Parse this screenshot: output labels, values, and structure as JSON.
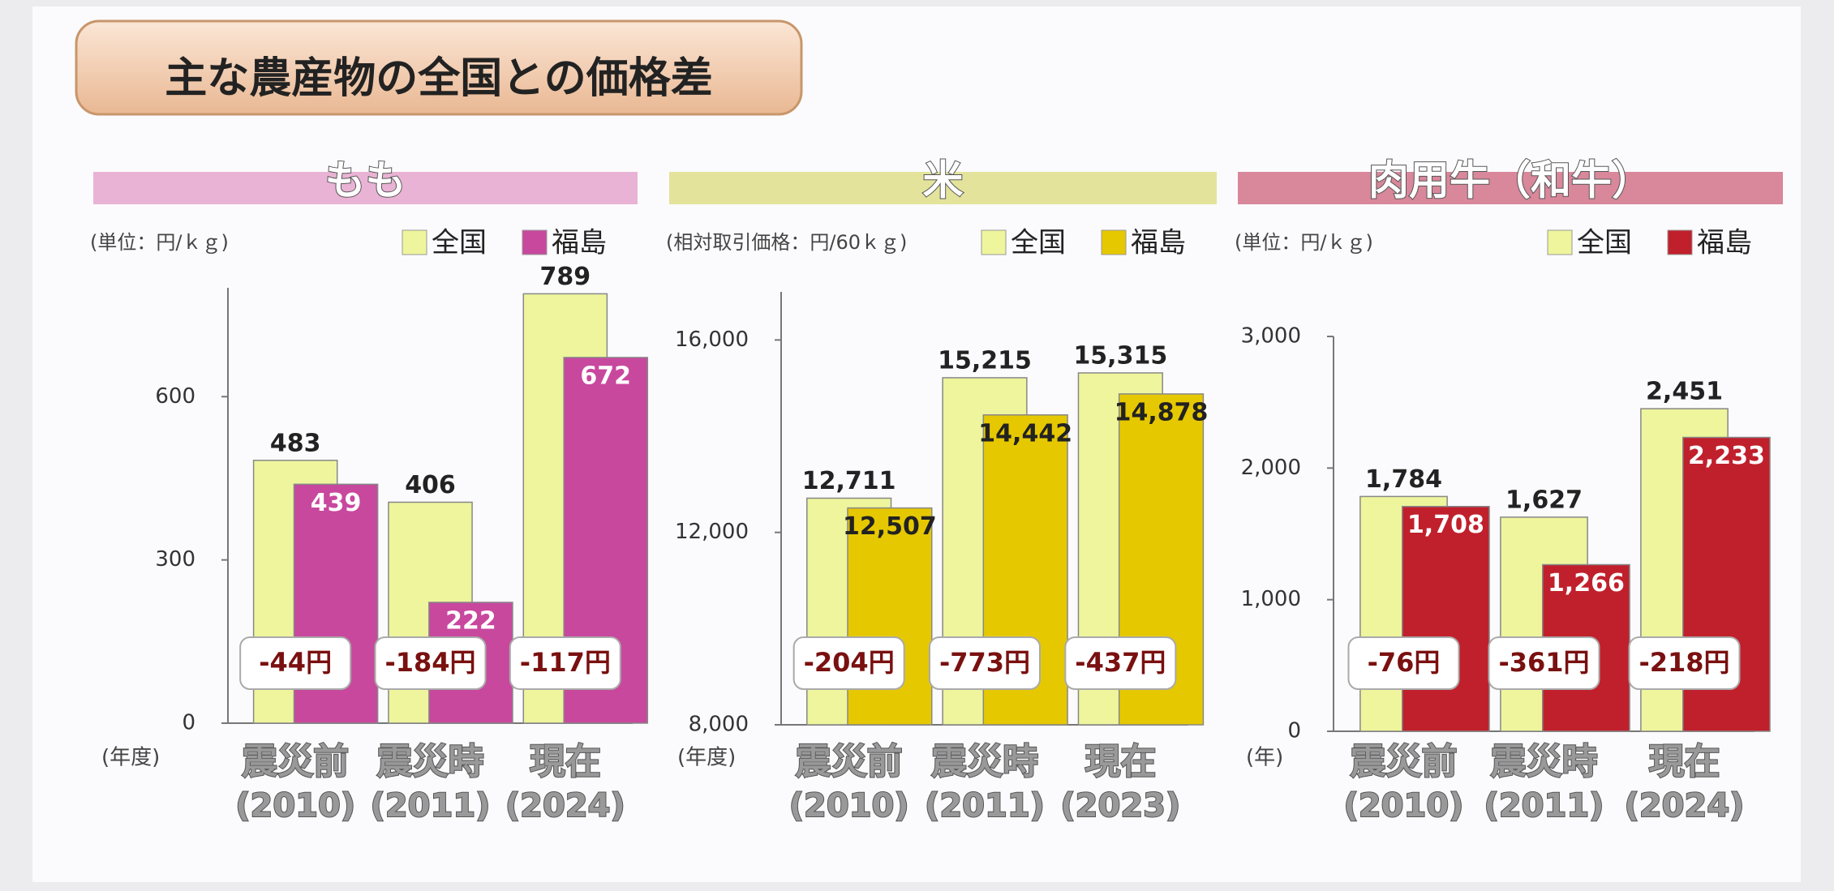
{
  "title": "主な農産物の全国との価格差",
  "chart_data": [
    {
      "type": "bar",
      "title": "もも",
      "unit": "(単位：円/ｋｇ)",
      "x_label": "(年度)",
      "categories": [
        "震災前",
        "震災時",
        "現在"
      ],
      "category_years": [
        "(2010)",
        "(2011)",
        "(2024)"
      ],
      "series": [
        {
          "name": "全国",
          "color": "#eef59c",
          "values": [
            483,
            406,
            789
          ]
        },
        {
          "name": "福島",
          "color": "#c8489e",
          "values": [
            439,
            222,
            672
          ]
        }
      ],
      "annotations": [
        "-44円",
        "-184円",
        "-117円"
      ],
      "ylim": [
        0,
        800
      ],
      "yticks": [
        0,
        300,
        600
      ],
      "header_color": "#e9b3d5"
    },
    {
      "type": "bar",
      "title": "米",
      "unit": "(相対取引価格：円/60ｋｇ)",
      "x_label": "(年度)",
      "categories": [
        "震災前",
        "震災時",
        "現在"
      ],
      "category_years": [
        "(2010)",
        "(2011)",
        "(2023)"
      ],
      "series": [
        {
          "name": "全国",
          "color": "#eef59c",
          "values": [
            12711,
            15215,
            15315
          ],
          "value_labels": [
            "12,711",
            "15,215",
            "15,315"
          ]
        },
        {
          "name": "福島",
          "color": "#e6c800",
          "values": [
            12507,
            14442,
            14878
          ],
          "value_labels": [
            "12,507",
            "14,442",
            "14,878"
          ]
        }
      ],
      "annotations": [
        "-204円",
        "-773円",
        "-437円"
      ],
      "ylim": [
        8000,
        17000
      ],
      "yticks": [
        {
          "value": 8000,
          "label": "8,000"
        },
        {
          "value": 12000,
          "label": "12,000"
        },
        {
          "value": 16000,
          "label": "16,000"
        }
      ],
      "header_color": "#e3e39c"
    },
    {
      "type": "bar",
      "title": "肉用牛（和牛）",
      "unit": "(単位：円/ｋｇ)",
      "x_label": "(年)",
      "categories": [
        "震災前",
        "震災時",
        "現在"
      ],
      "category_years": [
        "(2010)",
        "(2011)",
        "(2024)"
      ],
      "series": [
        {
          "name": "全国",
          "color": "#eef59c",
          "values": [
            1784,
            1627,
            2451
          ],
          "value_labels": [
            "1,784",
            "1,627",
            "2,451"
          ]
        },
        {
          "name": "福島",
          "color": "#c0202c",
          "values": [
            1708,
            1266,
            2233
          ],
          "value_labels": [
            "1,708",
            "1,266",
            "2,233"
          ]
        }
      ],
      "annotations": [
        "-76円",
        "-361円",
        "-218円"
      ],
      "ylim": [
        0,
        3000
      ],
      "yticks": [
        0,
        {
          "value": 1000,
          "label": "1,000"
        },
        {
          "value": 2000,
          "label": "2,000"
        },
        {
          "value": 3000,
          "label": "3,000"
        }
      ],
      "header_color": "#d9879a"
    }
  ]
}
